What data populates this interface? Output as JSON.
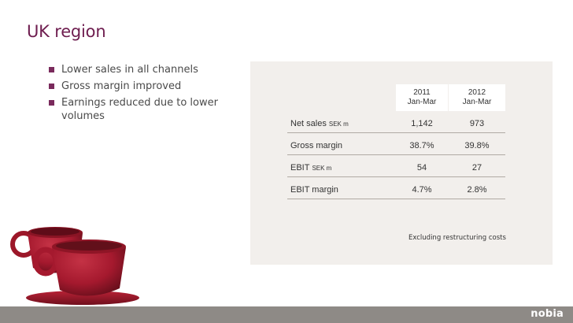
{
  "slide": {
    "title": "UK region"
  },
  "bullets": [
    "Lower sales in all channels",
    "Gross margin improved",
    "Earnings reduced due to lower volumes"
  ],
  "table": {
    "columns": [
      {
        "year": "2011",
        "period": "Jan-Mar"
      },
      {
        "year": "2012",
        "period": "Jan-Mar"
      }
    ],
    "rows": [
      {
        "label": "Net sales",
        "unit": "SEK m",
        "v2011": "1,142",
        "v2012": "973"
      },
      {
        "label": "Gross margin",
        "unit": "",
        "v2011": "38.7%",
        "v2012": "39.8%"
      },
      {
        "label": "EBIT",
        "unit": "SEK m",
        "v2011": "54",
        "v2012": "27"
      },
      {
        "label": "EBIT margin",
        "unit": "",
        "v2011": "4.7%",
        "v2012": "2.8%"
      }
    ]
  },
  "footnote": "Excluding restructuring costs",
  "logo": "nobia",
  "colors": {
    "title": "#6e1d4f",
    "bullet": "#7a2a5c",
    "panel": "#f2efec",
    "bar": "#8e8a86",
    "cup": "#a5192e"
  }
}
